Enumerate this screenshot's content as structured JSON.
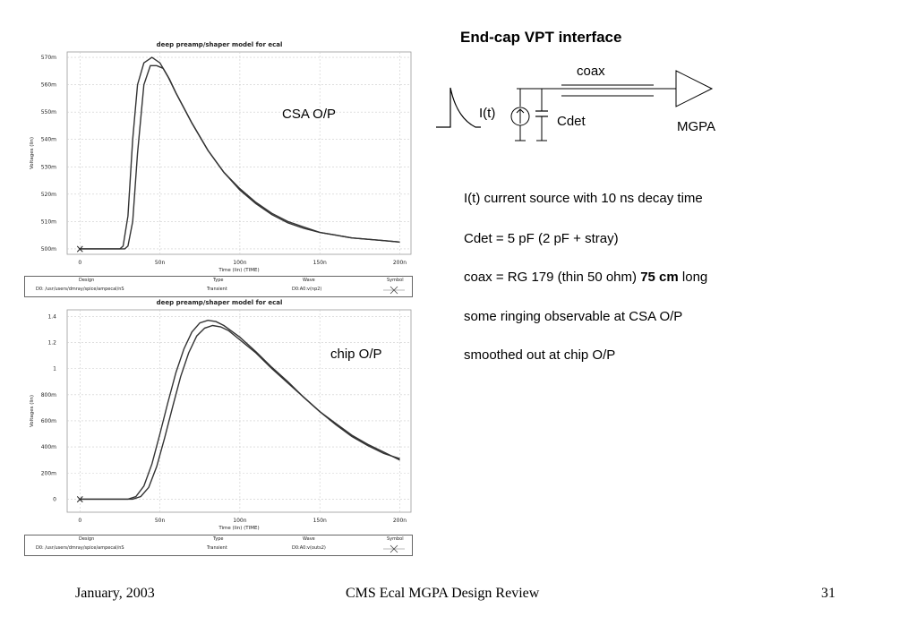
{
  "chart_data": [
    {
      "type": "line",
      "title": "deep preamp/shaper model for ecal",
      "xlabel": "Time (lin) (TIME)",
      "ylabel": "Voltages (lin)",
      "xlim": [
        -8,
        207
      ],
      "ylim": [
        498,
        572
      ],
      "xticks": [
        0,
        50,
        100,
        150,
        200
      ],
      "xtick_labels": [
        "0",
        "50n",
        "100n",
        "150n",
        "200n"
      ],
      "yticks": [
        500,
        510,
        520,
        530,
        540,
        550,
        560,
        570
      ],
      "ytick_labels": [
        "500m",
        "510m",
        "520m",
        "530m",
        "540m",
        "550m",
        "560m",
        "570m"
      ],
      "grid": true,
      "annotation": "CSA O/P",
      "marker_label": "×",
      "legend": {
        "headers": [
          "Design",
          "Type",
          "Wave",
          "Symbol"
        ],
        "row": [
          "D0: /usr/users/dmray/spice/ampecal/nS",
          "Transient",
          "D0:A0:v(np2)",
          ""
        ]
      },
      "series": [
        {
          "x": [
            0,
            25,
            27,
            30,
            33,
            36,
            40,
            45,
            50,
            55,
            60,
            70,
            80,
            90,
            100,
            110,
            120,
            130,
            140,
            150,
            160,
            170,
            180,
            190,
            200
          ],
          "values": [
            500,
            500,
            501,
            512,
            540,
            560,
            568,
            570,
            568,
            563,
            557,
            546,
            536,
            528,
            522,
            517,
            513,
            510,
            508,
            506,
            505,
            504,
            503.5,
            503,
            502.5
          ]
        },
        {
          "x": [
            0,
            28,
            30,
            33,
            36,
            40,
            44,
            48,
            52,
            56,
            60,
            70,
            80,
            90,
            100,
            110,
            120,
            130,
            140,
            150,
            160,
            170,
            180,
            190,
            200
          ],
          "values": [
            500,
            500,
            501,
            510,
            535,
            560,
            567,
            567,
            566,
            562,
            557,
            546,
            536,
            528,
            521.5,
            516.5,
            512.5,
            509.5,
            507.5,
            506,
            505,
            504,
            503.5,
            503,
            502.5
          ]
        }
      ]
    },
    {
      "type": "line",
      "title": "deep preamp/shaper model for ecal",
      "xlabel": "Time (lin) (TIME)",
      "ylabel": "Voltages (lin)",
      "xlim": [
        -8,
        207
      ],
      "ylim": [
        -0.1,
        1.45
      ],
      "xticks": [
        0,
        50,
        100,
        150,
        200
      ],
      "xtick_labels": [
        "0",
        "50n",
        "100n",
        "150n",
        "200n"
      ],
      "yticks": [
        0,
        0.2,
        0.4,
        0.6,
        0.8,
        1.0,
        1.2,
        1.4
      ],
      "ytick_labels": [
        "0",
        "200m",
        "400m",
        "600m",
        "800m",
        "1",
        "1.2",
        "1.4"
      ],
      "grid": true,
      "annotation": "chip O/P",
      "marker_label": "×",
      "legend": {
        "headers": [
          "Design",
          "Type",
          "Wave",
          "Symbol"
        ],
        "row": [
          "D0: /usr/users/dmray/spice/ampecal/nS",
          "Transient",
          "D0:A0:v(outs2)",
          ""
        ]
      },
      "series": [
        {
          "x": [
            0,
            30,
            35,
            40,
            45,
            50,
            55,
            60,
            65,
            70,
            75,
            80,
            85,
            90,
            100,
            110,
            120,
            130,
            140,
            150,
            160,
            170,
            180,
            190,
            200
          ],
          "values": [
            0,
            0,
            0.02,
            0.1,
            0.27,
            0.5,
            0.74,
            0.97,
            1.15,
            1.28,
            1.35,
            1.37,
            1.36,
            1.33,
            1.24,
            1.13,
            1.01,
            0.9,
            0.78,
            0.67,
            0.58,
            0.49,
            0.42,
            0.36,
            0.3
          ]
        },
        {
          "x": [
            0,
            33,
            38,
            43,
            48,
            53,
            58,
            63,
            68,
            73,
            78,
            83,
            88,
            93,
            100,
            110,
            120,
            130,
            140,
            150,
            160,
            170,
            180,
            190,
            200
          ],
          "values": [
            0,
            0,
            0.02,
            0.09,
            0.25,
            0.47,
            0.71,
            0.94,
            1.12,
            1.25,
            1.31,
            1.33,
            1.32,
            1.29,
            1.22,
            1.12,
            1.0,
            0.89,
            0.78,
            0.67,
            0.57,
            0.48,
            0.41,
            0.35,
            0.31
          ]
        }
      ]
    }
  ],
  "heading": "End-cap VPT interface",
  "schematic": {
    "coax_label": "coax",
    "source_label": "I(t)",
    "cap_label": "Cdet",
    "amp_label": "MGPA"
  },
  "text_lines": [
    {
      "parts": [
        {
          "t": "I(t) current source with 10 ns decay time",
          "b": false
        }
      ]
    },
    {
      "parts": [
        {
          "t": "Cdet = 5 pF (2 pF + stray)",
          "b": false
        }
      ]
    },
    {
      "parts": [
        {
          "t": "coax = RG 179 (thin 50 ohm) ",
          "b": false
        },
        {
          "t": "75 cm",
          "b": true
        },
        {
          "t": " long",
          "b": false
        }
      ]
    },
    {
      "parts": [
        {
          "t": "some ringing observable at CSA O/P",
          "b": false
        }
      ]
    },
    {
      "parts": [
        {
          "t": "smoothed out at chip O/P",
          "b": false
        }
      ]
    }
  ],
  "footer": {
    "date": "January, 2003",
    "title": "CMS Ecal MGPA Design Review",
    "page": "31"
  }
}
